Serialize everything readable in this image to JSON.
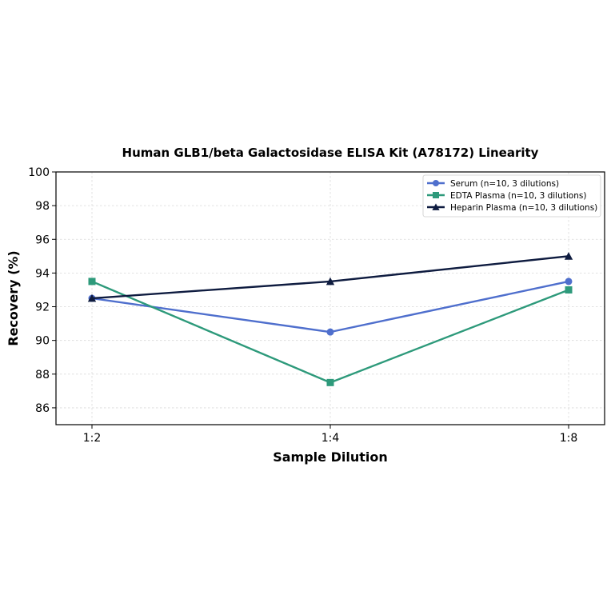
{
  "chart_data": {
    "type": "line",
    "title": "Human GLB1/beta Galactosidase ELISA Kit (A78172) Linearity",
    "xlabel": "Sample Dilution",
    "ylabel": "Recovery (%)",
    "categories": [
      "1:2",
      "1:4",
      "1:8"
    ],
    "ylim": [
      85,
      100
    ],
    "yticks": [
      86,
      88,
      90,
      92,
      94,
      96,
      98,
      100
    ],
    "grid": true,
    "legend_position": "top-right",
    "series": [
      {
        "name": "Serum (n=10, 3 dilutions)",
        "values": [
          92.5,
          90.5,
          93.5
        ],
        "color": "#4f6fcd",
        "marker": "circle"
      },
      {
        "name": "EDTA Plasma (n=10, 3 dilutions)",
        "values": [
          93.5,
          87.5,
          93.0
        ],
        "color": "#2e9a7b",
        "marker": "square"
      },
      {
        "name": "Heparin Plasma (n=10, 3 dilutions)",
        "values": [
          92.5,
          93.5,
          95.0
        ],
        "color": "#0f1c40",
        "marker": "triangle"
      }
    ]
  }
}
